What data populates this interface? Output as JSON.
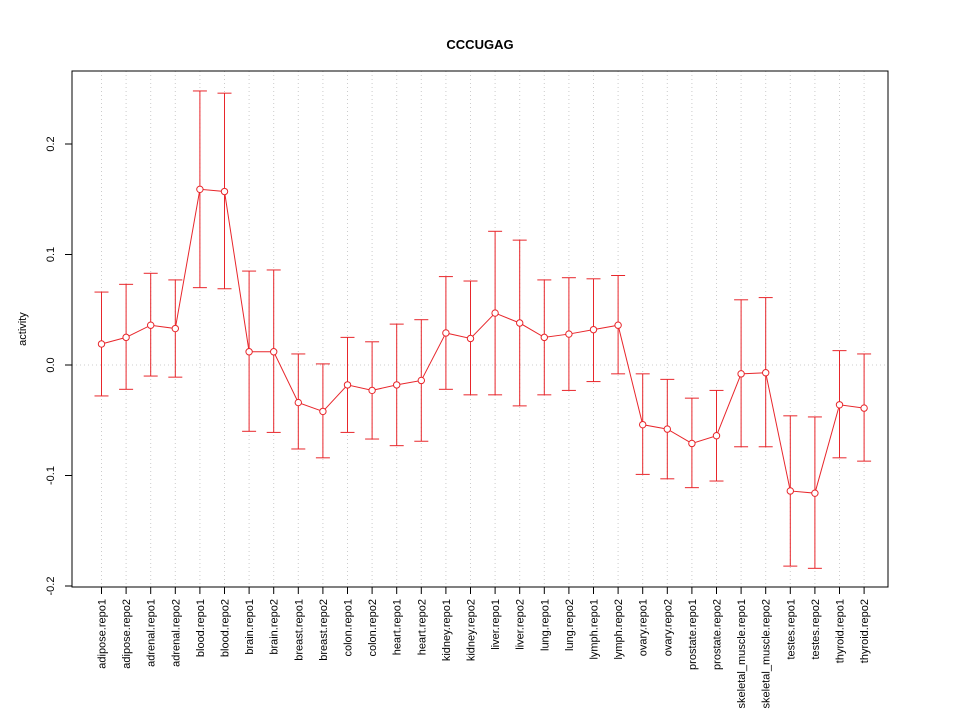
{
  "chart_data": {
    "type": "line",
    "title": "CCCUGAG",
    "xlabel": "",
    "ylabel": "activity",
    "ylim": [
      -0.2,
      0.25
    ],
    "y_ticks": [
      "-0.2",
      "-0.1",
      "0.0",
      "0.1",
      "0.2"
    ],
    "grid": true,
    "colors": {
      "series": "#e8262b",
      "grid": "#cccccc",
      "axis": "#000000"
    },
    "categories": [
      "adipose.repo1",
      "adipose.repo2",
      "adrenal.repo1",
      "adrenal.repo2",
      "blood.repo1",
      "blood.repo2",
      "brain.repo1",
      "brain.repo2",
      "breast.repo1",
      "breast.repo2",
      "colon.repo1",
      "colon.repo2",
      "heart.repo1",
      "heart.repo2",
      "kidney.repo1",
      "kidney.repo2",
      "liver.repo1",
      "liver.repo2",
      "lung.repo1",
      "lung.repo2",
      "lymph.repo1",
      "lymph.repo2",
      "ovary.repo1",
      "ovary.repo2",
      "prostate.repo1",
      "prostate.repo2",
      "skeletal_muscle.repo1",
      "skeletal_muscle.repo2",
      "testes.repo1",
      "testes.repo2",
      "thyroid.repo1",
      "thyroid.repo2"
    ],
    "values": [
      0.019,
      0.025,
      0.036,
      0.033,
      0.159,
      0.157,
      0.012,
      0.012,
      -0.034,
      -0.042,
      -0.018,
      -0.023,
      -0.018,
      -0.014,
      0.029,
      0.024,
      0.047,
      0.038,
      0.025,
      0.028,
      0.032,
      0.036,
      -0.054,
      -0.058,
      -0.071,
      -0.064,
      -0.008,
      -0.007,
      -0.114,
      -0.116,
      -0.036,
      -0.039
    ],
    "lower": [
      -0.028,
      -0.022,
      -0.01,
      -0.011,
      0.07,
      0.069,
      -0.06,
      -0.061,
      -0.076,
      -0.084,
      -0.061,
      -0.067,
      -0.073,
      -0.069,
      -0.022,
      -0.027,
      -0.027,
      -0.037,
      -0.027,
      -0.023,
      -0.015,
      -0.008,
      -0.099,
      -0.103,
      -0.111,
      -0.105,
      -0.074,
      -0.074,
      -0.182,
      -0.184,
      -0.084,
      -0.087
    ],
    "upper": [
      0.066,
      0.073,
      0.083,
      0.077,
      0.248,
      0.246,
      0.085,
      0.086,
      0.01,
      0.001,
      0.025,
      0.021,
      0.037,
      0.041,
      0.08,
      0.076,
      0.121,
      0.113,
      0.077,
      0.079,
      0.078,
      0.081,
      -0.008,
      -0.013,
      -0.03,
      -0.023,
      0.059,
      0.061,
      -0.046,
      -0.047,
      0.013,
      0.01
    ]
  }
}
